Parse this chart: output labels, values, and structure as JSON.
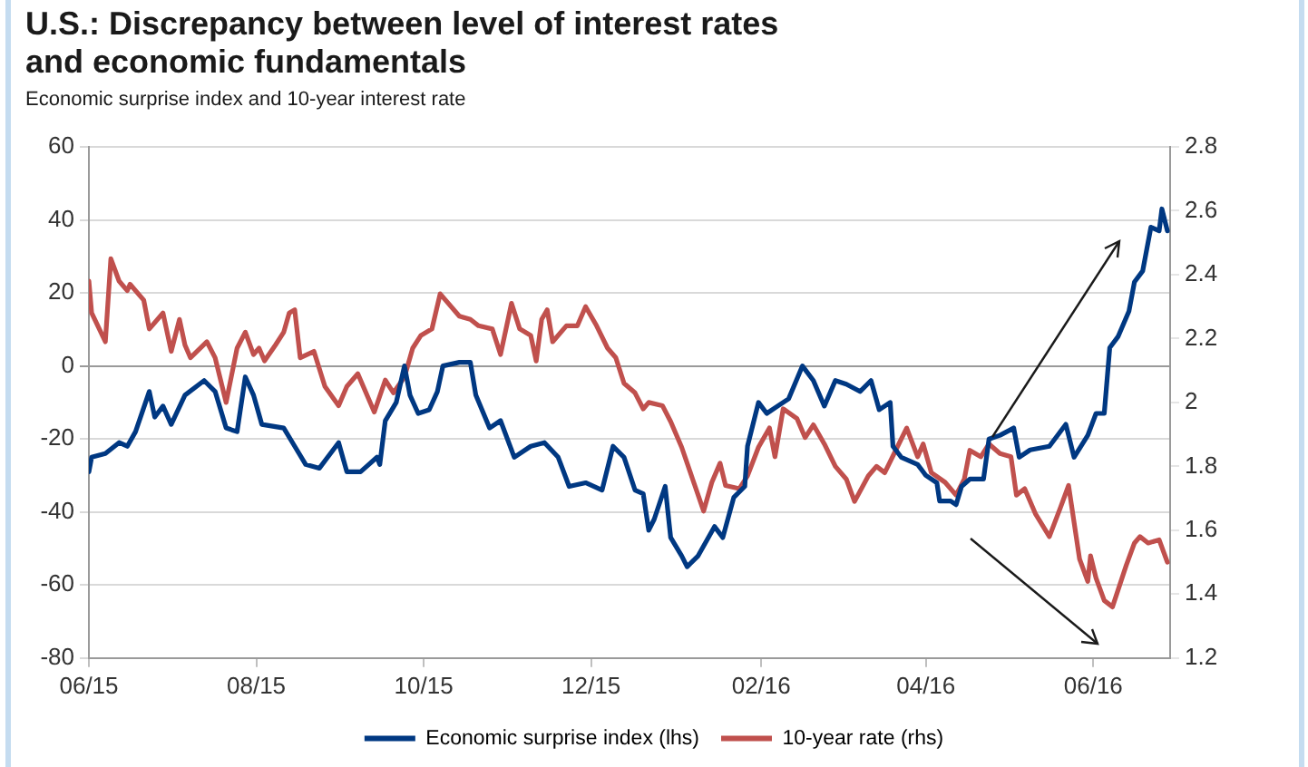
{
  "chart_data": {
    "type": "line",
    "title": "U.S.: Discrepancy between level of interest rates\nand economic fundamentals",
    "subtitle": "Economic surprise index and 10-year interest rate",
    "xlim": [
      "2015-06-01",
      "2016-06-29"
    ],
    "xticks": [
      {
        "value": "2015-06-01",
        "label": "06/15"
      },
      {
        "value": "2015-08-01",
        "label": "08/15"
      },
      {
        "value": "2015-10-01",
        "label": "10/15"
      },
      {
        "value": "2015-12-01",
        "label": "12/15"
      },
      {
        "value": "2016-02-01",
        "label": "02/16"
      },
      {
        "value": "2016-04-01",
        "label": "04/16"
      },
      {
        "value": "2016-06-01",
        "label": "06/16"
      }
    ],
    "ylim": [
      -80,
      60
    ],
    "yticks": [
      -80,
      -60,
      -40,
      -20,
      0,
      20,
      40,
      60
    ],
    "y2lim": [
      1.2,
      2.8
    ],
    "y2ticks": [
      1.2,
      1.4,
      1.6,
      1.8,
      2.0,
      2.2,
      2.4,
      2.6,
      2.8
    ],
    "grid": "y",
    "legend": "bottom",
    "marker": "none",
    "line_style": "solid",
    "series": [
      {
        "name": "Economic surprise index (lhs)",
        "color": "#003882",
        "x": [
          "2015-06-01",
          "2015-06-02",
          "2015-06-07",
          "2015-06-12",
          "2015-06-15",
          "2015-06-18",
          "2015-06-23",
          "2015-06-25",
          "2015-06-28",
          "2015-07-01",
          "2015-07-06",
          "2015-07-13",
          "2015-07-17",
          "2015-07-21",
          "2015-07-25",
          "2015-07-28",
          "2015-07-31",
          "2015-08-03",
          "2015-08-11",
          "2015-08-15",
          "2015-08-19",
          "2015-08-24",
          "2015-08-31",
          "2015-09-03",
          "2015-09-08",
          "2015-09-14",
          "2015-09-15",
          "2015-09-17",
          "2015-09-21",
          "2015-09-24",
          "2015-09-26",
          "2015-09-29",
          "2015-10-03",
          "2015-10-06",
          "2015-10-08",
          "2015-10-14",
          "2015-10-18",
          "2015-10-20",
          "2015-10-25",
          "2015-10-29",
          "2015-11-03",
          "2015-11-09",
          "2015-11-14",
          "2015-11-19",
          "2015-11-23",
          "2015-11-29",
          "2015-12-05",
          "2015-12-09",
          "2015-12-13",
          "2015-12-17",
          "2015-12-20",
          "2015-12-22",
          "2015-12-24",
          "2015-12-28",
          "2015-12-30",
          "2016-01-03",
          "2016-01-05",
          "2016-01-09",
          "2016-01-15",
          "2016-01-18",
          "2016-01-22",
          "2016-01-26",
          "2016-01-27",
          "2016-01-31",
          "2016-02-03",
          "2016-02-07",
          "2016-02-11",
          "2016-02-16",
          "2016-02-20",
          "2016-02-24",
          "2016-02-28",
          "2016-03-03",
          "2016-03-08",
          "2016-03-12",
          "2016-03-15",
          "2016-03-19",
          "2016-03-20",
          "2016-03-23",
          "2016-03-29",
          "2016-04-01",
          "2016-04-05",
          "2016-04-06",
          "2016-04-10",
          "2016-04-12",
          "2016-04-14",
          "2016-04-17",
          "2016-04-22",
          "2016-04-24",
          "2016-04-28",
          "2016-05-03",
          "2016-05-05",
          "2016-05-09",
          "2016-05-16",
          "2016-05-22",
          "2016-05-25",
          "2016-05-30",
          "2016-06-02",
          "2016-06-05",
          "2016-06-07",
          "2016-06-10",
          "2016-06-14",
          "2016-06-16",
          "2016-06-19",
          "2016-06-22",
          "2016-06-25",
          "2016-06-26",
          "2016-06-28"
        ],
        "values": [
          -29,
          -25,
          -24,
          -21,
          -22,
          -18,
          -7,
          -14,
          -11,
          -16,
          -8,
          -4,
          -7,
          -17,
          -18,
          -3,
          -8,
          -16,
          -17,
          -22,
          -27,
          -28,
          -21,
          -29,
          -29,
          -25,
          -27,
          -15,
          -10,
          0,
          -8,
          -13,
          -12,
          -7,
          0,
          1,
          1,
          -8,
          -17,
          -15,
          -25,
          -22,
          -21,
          -25,
          -33,
          -32,
          -34,
          -22,
          -25,
          -34,
          -35,
          -45,
          -42,
          -33,
          -47,
          -52,
          -55,
          -52,
          -44,
          -47,
          -36,
          -33,
          -22,
          -10,
          -13,
          -11,
          -9,
          0,
          -4,
          -11,
          -4,
          -5,
          -7,
          -4,
          -12,
          -10,
          -22,
          -25,
          -27,
          -30,
          -32,
          -37,
          -37,
          -38,
          -33,
          -31,
          -31,
          -20,
          -19,
          -17,
          -25,
          -23,
          -22,
          -16,
          -25,
          -19,
          -13,
          -13,
          5,
          8,
          15,
          23,
          26,
          38,
          37,
          43,
          37
        ]
      },
      {
        "name": "10-year rate (rhs)",
        "color": "#c0504d",
        "axis": "y2",
        "x": [
          "2015-06-01",
          "2015-06-02",
          "2015-06-07",
          "2015-06-09",
          "2015-06-12",
          "2015-06-15",
          "2015-06-16",
          "2015-06-21",
          "2015-06-23",
          "2015-06-28",
          "2015-07-01",
          "2015-07-04",
          "2015-07-06",
          "2015-07-08",
          "2015-07-14",
          "2015-07-17",
          "2015-07-21",
          "2015-07-25",
          "2015-07-28",
          "2015-07-31",
          "2015-08-02",
          "2015-08-04",
          "2015-08-08",
          "2015-08-11",
          "2015-08-13",
          "2015-08-15",
          "2015-08-17",
          "2015-08-22",
          "2015-08-26",
          "2015-08-31",
          "2015-09-03",
          "2015-09-07",
          "2015-09-13",
          "2015-09-17",
          "2015-09-20",
          "2015-09-24",
          "2015-09-27",
          "2015-09-30",
          "2015-10-04",
          "2015-10-07",
          "2015-10-14",
          "2015-10-18",
          "2015-10-21",
          "2015-10-26",
          "2015-10-29",
          "2015-11-02",
          "2015-11-05",
          "2015-11-09",
          "2015-11-11",
          "2015-11-13",
          "2015-11-15",
          "2015-11-17",
          "2015-11-22",
          "2015-11-26",
          "2015-11-29",
          "2015-12-03",
          "2015-12-07",
          "2015-12-10",
          "2015-12-13",
          "2015-12-17",
          "2015-12-20",
          "2015-12-22",
          "2015-12-27",
          "2015-12-30",
          "2016-01-03",
          "2016-01-07",
          "2016-01-11",
          "2016-01-14",
          "2016-01-17",
          "2016-01-19",
          "2016-01-24",
          "2016-01-27",
          "2016-01-31",
          "2016-02-04",
          "2016-02-06",
          "2016-02-09",
          "2016-02-14",
          "2016-02-17",
          "2016-02-20",
          "2016-02-24",
          "2016-02-28",
          "2016-03-03",
          "2016-03-06",
          "2016-03-11",
          "2016-03-14",
          "2016-03-17",
          "2016-03-21",
          "2016-03-25",
          "2016-03-29",
          "2016-03-31",
          "2016-04-03",
          "2016-04-08",
          "2016-04-12",
          "2016-04-15",
          "2016-04-17",
          "2016-04-21",
          "2016-04-24",
          "2016-04-28",
          "2016-05-02",
          "2016-05-04",
          "2016-05-07",
          "2016-05-11",
          "2016-05-16",
          "2016-05-20",
          "2016-05-23",
          "2016-05-27",
          "2016-05-30",
          "2016-05-31",
          "2016-06-02",
          "2016-06-05",
          "2016-06-08",
          "2016-06-13",
          "2016-06-16",
          "2016-06-18",
          "2016-06-21",
          "2016-06-25",
          "2016-06-28"
        ],
        "values": [
          2.38,
          2.28,
          2.19,
          2.45,
          2.38,
          2.35,
          2.37,
          2.32,
          2.23,
          2.28,
          2.16,
          2.26,
          2.18,
          2.14,
          2.19,
          2.14,
          2.0,
          2.17,
          2.22,
          2.15,
          2.17,
          2.13,
          2.18,
          2.22,
          2.28,
          2.29,
          2.14,
          2.16,
          2.05,
          1.99,
          2.05,
          2.09,
          1.97,
          2.07,
          2.03,
          2.08,
          2.17,
          2.21,
          2.23,
          2.34,
          2.27,
          2.26,
          2.24,
          2.23,
          2.15,
          2.31,
          2.23,
          2.21,
          2.13,
          2.26,
          2.29,
          2.19,
          2.24,
          2.24,
          2.3,
          2.24,
          2.17,
          2.14,
          2.06,
          2.03,
          1.98,
          2.0,
          1.99,
          1.94,
          1.86,
          1.76,
          1.66,
          1.75,
          1.81,
          1.74,
          1.73,
          1.77,
          1.86,
          1.92,
          1.83,
          1.98,
          1.95,
          1.89,
          1.93,
          1.87,
          1.8,
          1.76,
          1.69,
          1.77,
          1.8,
          1.78,
          1.85,
          1.92,
          1.83,
          1.87,
          1.78,
          1.75,
          1.71,
          1.76,
          1.85,
          1.83,
          1.87,
          1.84,
          1.83,
          1.71,
          1.73,
          1.65,
          1.58,
          1.67,
          1.74,
          1.51,
          1.44,
          1.52,
          1.45,
          1.38,
          1.36,
          1.49,
          1.56,
          1.58,
          1.56,
          1.57,
          1.5
        ]
      }
    ]
  }
}
